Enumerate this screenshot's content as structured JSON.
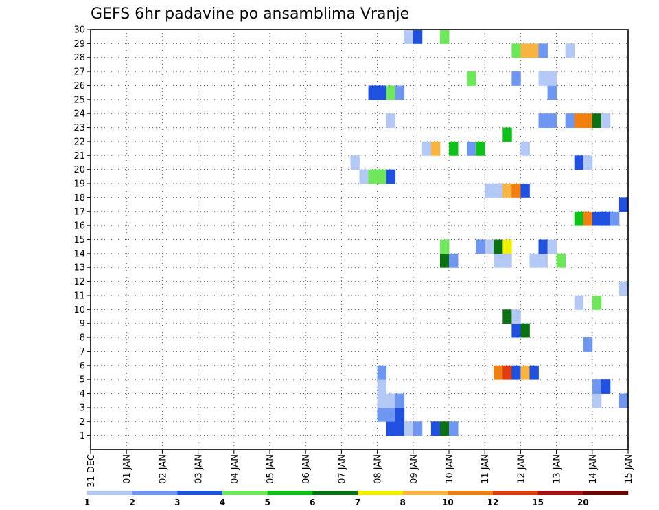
{
  "chart_data": {
    "type": "heatmap",
    "title": "GEFS 6hr padavine po ansamblima Vranje",
    "xlabel": "",
    "ylabel": "",
    "x_range": [
      "2019-12-31T00",
      "2020-01-15T00"
    ],
    "x_tick_labels": [
      "31 DEC",
      "01 JAN",
      "02 JAN",
      "03 JAN",
      "04 JAN",
      "05 JAN",
      "06 JAN",
      "07 JAN",
      "08 JAN",
      "09 JAN",
      "10 JAN",
      "11 JAN",
      "12 JAN",
      "13 JAN",
      "14 JAN",
      "15 JAN"
    ],
    "y_tick_labels": [
      "1",
      "2",
      "3",
      "4",
      "5",
      "6",
      "7",
      "8",
      "9",
      "10",
      "11",
      "12",
      "13",
      "14",
      "15",
      "16",
      "17",
      "18",
      "19",
      "20",
      "21",
      "22",
      "23",
      "24",
      "25",
      "26",
      "27",
      "28",
      "29",
      "30"
    ],
    "ylim": [
      0,
      30
    ],
    "grid": true,
    "colorbar": {
      "labels": [
        "1",
        "2",
        "3",
        "4",
        "5",
        "6",
        "7",
        "8",
        "10",
        "12",
        "15",
        "20"
      ],
      "colors": [
        "#b4c8f5",
        "#6f96f0",
        "#2050e0",
        "#6ee85a",
        "#0fc21a",
        "#0a7012",
        "#f0f000",
        "#f8b440",
        "#f28010",
        "#e03c10",
        "#a81010",
        "#6a0808"
      ]
    },
    "cells": [
      {
        "x": "2020-01-08T06",
        "y": 1,
        "v": 3
      },
      {
        "x": "2020-01-08T12",
        "y": 1,
        "v": 3
      },
      {
        "x": "2020-01-08T18",
        "y": 1,
        "v": 1
      },
      {
        "x": "2020-01-09T00",
        "y": 1,
        "v": 2
      },
      {
        "x": "2020-01-09T12",
        "y": 1,
        "v": 3
      },
      {
        "x": "2020-01-09T18",
        "y": 1,
        "v": 6
      },
      {
        "x": "2020-01-10T00",
        "y": 1,
        "v": 2
      },
      {
        "x": "2020-01-08T00",
        "y": 2,
        "v": 2
      },
      {
        "x": "2020-01-08T06",
        "y": 2,
        "v": 2
      },
      {
        "x": "2020-01-08T12",
        "y": 2,
        "v": 3
      },
      {
        "x": "2020-01-08T00",
        "y": 3,
        "v": 1
      },
      {
        "x": "2020-01-08T06",
        "y": 3,
        "v": 1
      },
      {
        "x": "2020-01-08T12",
        "y": 3,
        "v": 2
      },
      {
        "x": "2020-01-14T00",
        "y": 3,
        "v": 1
      },
      {
        "x": "2020-01-14T18",
        "y": 3,
        "v": 2
      },
      {
        "x": "2020-01-08T00",
        "y": 4,
        "v": 1
      },
      {
        "x": "2020-01-14T00",
        "y": 4,
        "v": 2
      },
      {
        "x": "2020-01-14T06",
        "y": 4,
        "v": 3
      },
      {
        "x": "2020-01-08T00",
        "y": 5,
        "v": 2
      },
      {
        "x": "2020-01-11T06",
        "y": 5,
        "v": 11
      },
      {
        "x": "2020-01-11T12",
        "y": 5,
        "v": 12
      },
      {
        "x": "2020-01-11T18",
        "y": 5,
        "v": 3
      },
      {
        "x": "2020-01-12T00",
        "y": 5,
        "v": 9
      },
      {
        "x": "2020-01-12T06",
        "y": 5,
        "v": 3
      },
      {
        "x": "2020-01-13T18",
        "y": 7,
        "v": 2
      },
      {
        "x": "2020-01-11T18",
        "y": 8,
        "v": 3
      },
      {
        "x": "2020-01-12T00",
        "y": 8,
        "v": 6
      },
      {
        "x": "2020-01-11T12",
        "y": 9,
        "v": 6
      },
      {
        "x": "2020-01-11T18",
        "y": 9,
        "v": 1
      },
      {
        "x": "2020-01-13T12",
        "y": 10,
        "v": 1
      },
      {
        "x": "2020-01-14T00",
        "y": 10,
        "v": 4
      },
      {
        "x": "2020-01-14T18",
        "y": 11,
        "v": 1
      },
      {
        "x": "2020-01-09T18",
        "y": 13,
        "v": 6
      },
      {
        "x": "2020-01-10T00",
        "y": 13,
        "v": 2
      },
      {
        "x": "2020-01-11T06",
        "y": 13,
        "v": 1
      },
      {
        "x": "2020-01-11T12",
        "y": 13,
        "v": 1
      },
      {
        "x": "2020-01-12T06",
        "y": 13,
        "v": 1
      },
      {
        "x": "2020-01-12T12",
        "y": 13,
        "v": 1
      },
      {
        "x": "2020-01-13T00",
        "y": 13,
        "v": 4
      },
      {
        "x": "2020-01-09T18",
        "y": 14,
        "v": 4
      },
      {
        "x": "2020-01-10T18",
        "y": 14,
        "v": 2
      },
      {
        "x": "2020-01-11T00",
        "y": 14,
        "v": 1
      },
      {
        "x": "2020-01-11T06",
        "y": 14,
        "v": 6
      },
      {
        "x": "2020-01-11T12",
        "y": 14,
        "v": 7
      },
      {
        "x": "2020-01-12T12",
        "y": 14,
        "v": 3
      },
      {
        "x": "2020-01-12T18",
        "y": 14,
        "v": 1
      },
      {
        "x": "2020-01-13T12",
        "y": 16,
        "v": 5
      },
      {
        "x": "2020-01-13T18",
        "y": 16,
        "v": 10
      },
      {
        "x": "2020-01-14T00",
        "y": 16,
        "v": 3
      },
      {
        "x": "2020-01-14T06",
        "y": 16,
        "v": 3
      },
      {
        "x": "2020-01-14T12",
        "y": 16,
        "v": 2
      },
      {
        "x": "2020-01-14T18",
        "y": 17,
        "v": 3
      },
      {
        "x": "2020-01-11T00",
        "y": 18,
        "v": 1
      },
      {
        "x": "2020-01-11T06",
        "y": 18,
        "v": 1
      },
      {
        "x": "2020-01-11T12",
        "y": 18,
        "v": 8
      },
      {
        "x": "2020-01-11T18",
        "y": 18,
        "v": 10
      },
      {
        "x": "2020-01-12T00",
        "y": 18,
        "v": 3
      },
      {
        "x": "2020-01-07T12",
        "y": 19,
        "v": 1
      },
      {
        "x": "2020-01-07T18",
        "y": 19,
        "v": 4
      },
      {
        "x": "2020-01-08T00",
        "y": 19,
        "v": 4
      },
      {
        "x": "2020-01-08T06",
        "y": 19,
        "v": 3
      },
      {
        "x": "2020-01-07T06",
        "y": 20,
        "v": 1
      },
      {
        "x": "2020-01-13T12",
        "y": 20,
        "v": 3
      },
      {
        "x": "2020-01-13T18",
        "y": 20,
        "v": 1
      },
      {
        "x": "2020-01-09T06",
        "y": 21,
        "v": 1
      },
      {
        "x": "2020-01-09T12",
        "y": 21,
        "v": 8
      },
      {
        "x": "2020-01-10T00",
        "y": 21,
        "v": 5
      },
      {
        "x": "2020-01-10T12",
        "y": 21,
        "v": 2
      },
      {
        "x": "2020-01-10T18",
        "y": 21,
        "v": 5
      },
      {
        "x": "2020-01-12T00",
        "y": 21,
        "v": 1
      },
      {
        "x": "2020-01-11T12",
        "y": 22,
        "v": 5
      },
      {
        "x": "2020-01-08T06",
        "y": 23,
        "v": 1
      },
      {
        "x": "2020-01-12T12",
        "y": 23,
        "v": 2
      },
      {
        "x": "2020-01-12T18",
        "y": 23,
        "v": 2
      },
      {
        "x": "2020-01-13T06",
        "y": 23,
        "v": 2
      },
      {
        "x": "2020-01-13T12",
        "y": 23,
        "v": 10
      },
      {
        "x": "2020-01-13T18",
        "y": 23,
        "v": 11
      },
      {
        "x": "2020-01-14T00",
        "y": 23,
        "v": 6
      },
      {
        "x": "2020-01-14T06",
        "y": 23,
        "v": 1
      },
      {
        "x": "2020-01-12T18",
        "y": 25,
        "v": 2
      },
      {
        "x": "2020-01-07T18",
        "y": 25,
        "v": 3
      },
      {
        "x": "2020-01-08T00",
        "y": 25,
        "v": 3
      },
      {
        "x": "2020-01-08T06",
        "y": 25,
        "v": 4
      },
      {
        "x": "2020-01-08T12",
        "y": 25,
        "v": 2
      },
      {
        "x": "2020-01-10T12",
        "y": 26,
        "v": 4
      },
      {
        "x": "2020-01-11T18",
        "y": 26,
        "v": 2
      },
      {
        "x": "2020-01-12T12",
        "y": 26,
        "v": 1
      },
      {
        "x": "2020-01-12T18",
        "y": 26,
        "v": 1
      },
      {
        "x": "2020-01-11T18",
        "y": 28,
        "v": 4
      },
      {
        "x": "2020-01-12T00",
        "y": 28,
        "v": 8
      },
      {
        "x": "2020-01-12T06",
        "y": 28,
        "v": 8
      },
      {
        "x": "2020-01-12T12",
        "y": 28,
        "v": 2
      },
      {
        "x": "2020-01-13T06",
        "y": 28,
        "v": 1
      },
      {
        "x": "2020-01-08T18",
        "y": 29,
        "v": 1
      },
      {
        "x": "2020-01-09T00",
        "y": 29,
        "v": 3
      },
      {
        "x": "2020-01-09T18",
        "y": 29,
        "v": 4
      }
    ]
  }
}
